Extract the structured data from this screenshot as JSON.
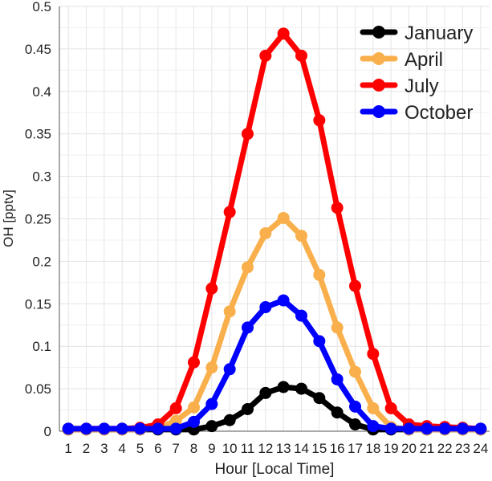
{
  "chart_data": {
    "type": "line",
    "xlabel": "Hour [Local Time]",
    "ylabel": "OH [pptv]",
    "x": [
      1,
      2,
      3,
      4,
      5,
      6,
      7,
      8,
      9,
      10,
      11,
      12,
      13,
      14,
      15,
      16,
      17,
      18,
      19,
      20,
      21,
      22,
      23,
      24
    ],
    "xlim": [
      0.5,
      24.5
    ],
    "ylim": [
      0,
      0.5
    ],
    "yticks": [
      0,
      0.05,
      0.1,
      0.15,
      0.2,
      0.25,
      0.3,
      0.35,
      0.4,
      0.45,
      0.5
    ],
    "ytick_labels": [
      "0",
      "0.05",
      "0.1",
      "0.15",
      "0.2",
      "0.25",
      "0.3",
      "0.35",
      "0.4",
      "0.45",
      "0.5"
    ],
    "grid": true,
    "legend_position": "top-right",
    "series": [
      {
        "name": "January",
        "color": "#000000",
        "values": [
          0.002,
          0.002,
          0.002,
          0.002,
          0.002,
          0.002,
          0.002,
          0.002,
          0.006,
          0.013,
          0.026,
          0.045,
          0.052,
          0.05,
          0.039,
          0.022,
          0.008,
          0.002,
          0.002,
          0.002,
          0.002,
          0.002,
          0.002,
          0.002
        ]
      },
      {
        "name": "April",
        "color": "#F9B04C",
        "values": [
          0.002,
          0.002,
          0.002,
          0.002,
          0.002,
          0.004,
          0.012,
          0.028,
          0.075,
          0.141,
          0.193,
          0.233,
          0.251,
          0.23,
          0.184,
          0.122,
          0.07,
          0.027,
          0.005,
          0.002,
          0.002,
          0.002,
          0.002,
          0.002
        ]
      },
      {
        "name": "July",
        "color": "#FF0000",
        "values": [
          0.003,
          0.003,
          0.003,
          0.003,
          0.004,
          0.008,
          0.027,
          0.081,
          0.168,
          0.258,
          0.35,
          0.442,
          0.468,
          0.442,
          0.366,
          0.263,
          0.171,
          0.091,
          0.027,
          0.008,
          0.006,
          0.005,
          0.004,
          0.003
        ]
      },
      {
        "name": "October",
        "color": "#0000FF",
        "values": [
          0.003,
          0.003,
          0.003,
          0.003,
          0.003,
          0.003,
          0.003,
          0.011,
          0.032,
          0.073,
          0.122,
          0.146,
          0.154,
          0.136,
          0.106,
          0.061,
          0.029,
          0.006,
          0.003,
          0.003,
          0.003,
          0.003,
          0.003,
          0.003
        ]
      }
    ]
  }
}
